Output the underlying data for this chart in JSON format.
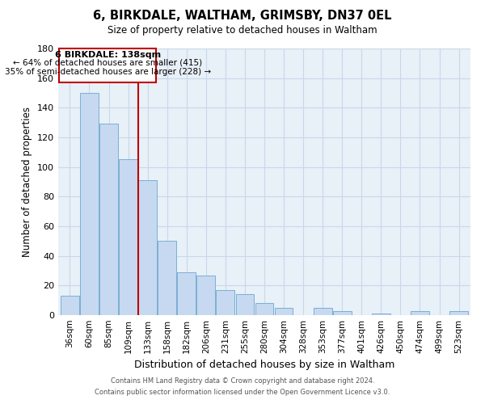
{
  "title": "6, BIRKDALE, WALTHAM, GRIMSBY, DN37 0EL",
  "subtitle": "Size of property relative to detached houses in Waltham",
  "xlabel": "Distribution of detached houses by size in Waltham",
  "ylabel": "Number of detached properties",
  "bar_color": "#c6d9f0",
  "bar_edge_color": "#7bafd4",
  "categories": [
    "36sqm",
    "60sqm",
    "85sqm",
    "109sqm",
    "133sqm",
    "158sqm",
    "182sqm",
    "206sqm",
    "231sqm",
    "255sqm",
    "280sqm",
    "304sqm",
    "328sqm",
    "353sqm",
    "377sqm",
    "401sqm",
    "426sqm",
    "450sqm",
    "474sqm",
    "499sqm",
    "523sqm"
  ],
  "values": [
    13,
    150,
    129,
    105,
    91,
    50,
    29,
    27,
    17,
    14,
    8,
    5,
    0,
    5,
    3,
    0,
    1,
    0,
    3,
    0,
    3
  ],
  "red_line_index": 4,
  "annotation_title": "6 BIRKDALE: 138sqm",
  "annotation_line1": "← 64% of detached houses are smaller (415)",
  "annotation_line2": "35% of semi-detached houses are larger (228) →",
  "ylim": [
    0,
    180
  ],
  "yticks": [
    0,
    20,
    40,
    60,
    80,
    100,
    120,
    140,
    160,
    180
  ],
  "footer1": "Contains HM Land Registry data © Crown copyright and database right 2024.",
  "footer2": "Contains public sector information licensed under the Open Government Licence v3.0.",
  "background_color": "#ffffff",
  "grid_color": "#c8d8ea",
  "plot_bg_color": "#e8f0f8"
}
